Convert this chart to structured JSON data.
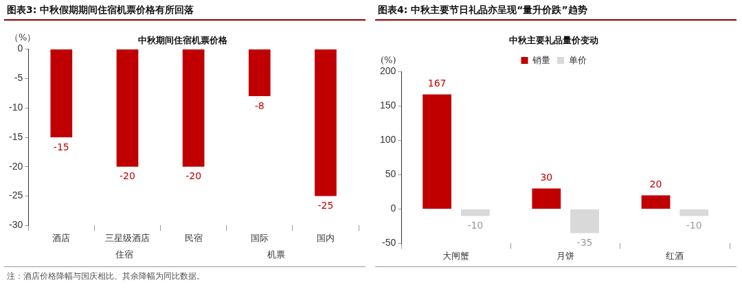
{
  "chart_data": [
    {
      "type": "bar",
      "title": "图表3:  中秋假期期间住宿机票价格有所回落",
      "subtitle": "中秋期间住宿机票价格",
      "ylabel": "（%）",
      "categories": [
        "酒店",
        "三星级酒店",
        "民宿",
        "国际",
        "国内"
      ],
      "series": [
        {
          "color": "#c00000",
          "values": [
            -15,
            -20,
            -20,
            -8,
            -25
          ]
        }
      ],
      "ylim": [
        -30,
        0
      ],
      "yticks": [
        -30,
        -25,
        -20,
        -15,
        -10,
        -5,
        0
      ],
      "grid": false,
      "legend": false,
      "data_labels": true,
      "annotations": [
        "住宿",
        "机票",
        "注：酒店价格降幅与国庆相比、其余降幅为同比数据。"
      ]
    },
    {
      "type": "bar",
      "title": "图表4:  中秋主要节日礼品亦呈现“量升价跌”趋势",
      "subtitle": "中秋主要礼品量价变动",
      "ylabel": "(%)",
      "categories": [
        "大闸蟹",
        "月饼",
        "红酒"
      ],
      "series": [
        {
          "name": "销量",
          "color": "#c00000",
          "values": [
            167,
            30,
            20
          ]
        },
        {
          "name": "单价",
          "color": "#d9d9d9",
          "values": [
            -10,
            -35,
            -10
          ]
        }
      ],
      "ylim": [
        -50,
        200
      ],
      "yticks": [
        -50,
        0,
        50,
        100,
        150,
        200
      ],
      "grid": false,
      "legend": "top",
      "data_labels": true
    }
  ]
}
